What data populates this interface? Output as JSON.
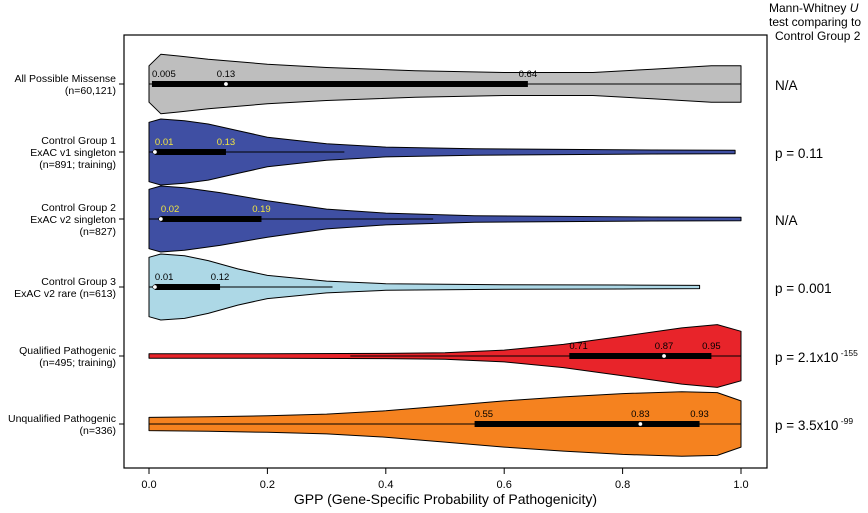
{
  "chart_data": {
    "type": "violin",
    "xlabel": "GPP (Gene-Specific Probability of Pathogenicity)",
    "xlim": [
      0,
      1
    ],
    "x_ticks": [
      "0.0",
      "0.2",
      "0.4",
      "0.6",
      "0.8",
      "1.0"
    ],
    "test_note": {
      "line1_prefix": "Mann-Whitney ",
      "line1_italic": "U",
      "line2": "test comparing to",
      "line3": "Control Group 2"
    },
    "groups": [
      {
        "label_lines": [
          "All Possible Missense",
          "(n=60,121)"
        ],
        "fill": "#bebebe",
        "label_color": "#000000",
        "min": 0.0,
        "max": 1.0,
        "q1": 0.005,
        "median": 0.13,
        "q3": 0.64,
        "q1_label": "0.005",
        "median_label": "0.13",
        "q3_label": "0.64",
        "p_text": "N/A",
        "p_exp": "",
        "profile": [
          [
            0,
            0.55
          ],
          [
            0.02,
            0.9
          ],
          [
            0.05,
            0.85
          ],
          [
            0.1,
            0.75
          ],
          [
            0.2,
            0.6
          ],
          [
            0.3,
            0.5
          ],
          [
            0.45,
            0.4
          ],
          [
            0.6,
            0.35
          ],
          [
            0.75,
            0.35
          ],
          [
            0.85,
            0.45
          ],
          [
            0.95,
            0.55
          ],
          [
            1.0,
            0.55
          ]
        ]
      },
      {
        "label_lines": [
          "Control Group 1",
          "ExAC v1 singleton",
          "(n=891; training)"
        ],
        "fill": "#3f4fa3",
        "label_color": "#f0e442",
        "min": 0.0,
        "max": 0.99,
        "q1": 0.01,
        "median": 0.01,
        "q3": 0.13,
        "whisker": 0.33,
        "q1_label": "0.01",
        "median_label": "0.01",
        "q3_label": "0.13",
        "p_text": "p = 0.11",
        "p_exp": "",
        "profile": [
          [
            0,
            0.9
          ],
          [
            0.02,
            1.0
          ],
          [
            0.06,
            0.95
          ],
          [
            0.1,
            0.85
          ],
          [
            0.15,
            0.65
          ],
          [
            0.2,
            0.45
          ],
          [
            0.3,
            0.25
          ],
          [
            0.4,
            0.15
          ],
          [
            0.55,
            0.1
          ],
          [
            0.7,
            0.08
          ],
          [
            0.85,
            0.06
          ],
          [
            0.99,
            0.05
          ]
        ]
      },
      {
        "label_lines": [
          "Control Group 2",
          "ExAC v2 singleton",
          "(n=827)"
        ],
        "fill": "#3f4fa3",
        "label_color": "#f0e442",
        "min": 0.0,
        "max": 1.0,
        "q1": 0.02,
        "median": 0.02,
        "q3": 0.19,
        "whisker": 0.48,
        "q1_label": "0.02",
        "median_label": "0.02",
        "q3_label": "0.19",
        "p_text": "N/A",
        "p_exp": "",
        "profile": [
          [
            0,
            0.9
          ],
          [
            0.02,
            1.0
          ],
          [
            0.06,
            0.95
          ],
          [
            0.12,
            0.8
          ],
          [
            0.2,
            0.55
          ],
          [
            0.3,
            0.3
          ],
          [
            0.4,
            0.18
          ],
          [
            0.55,
            0.1
          ],
          [
            0.7,
            0.08
          ],
          [
            0.85,
            0.06
          ],
          [
            1.0,
            0.05
          ]
        ]
      },
      {
        "label_lines": [
          "Control Group 3",
          "ExAC v2 rare (n=613)"
        ],
        "fill": "#add8e6",
        "label_color": "#000000",
        "min": 0.0,
        "max": 0.93,
        "q1": 0.01,
        "median": 0.01,
        "q3": 0.12,
        "whisker": 0.31,
        "q1_label": "0.01",
        "median_label": "0.01",
        "q3_label": "0.12",
        "p_text": "p = 0.001",
        "p_exp": "",
        "profile": [
          [
            0,
            0.9
          ],
          [
            0.02,
            1.0
          ],
          [
            0.06,
            0.95
          ],
          [
            0.1,
            0.8
          ],
          [
            0.15,
            0.55
          ],
          [
            0.2,
            0.35
          ],
          [
            0.3,
            0.18
          ],
          [
            0.4,
            0.1
          ],
          [
            0.6,
            0.07
          ],
          [
            0.8,
            0.06
          ],
          [
            0.93,
            0.05
          ]
        ]
      },
      {
        "label_lines": [
          "Qualified Pathogenic",
          "(n=495; training)"
        ],
        "fill": "#e8242a",
        "label_color": "#000000",
        "min": 0.0,
        "max": 1.0,
        "q1": 0.71,
        "median": 0.87,
        "q3": 0.95,
        "whisker_lo": 0.34,
        "q1_label": "0.71",
        "median_label": "0.87",
        "q3_label": "0.95",
        "p_text": "p = 2.1x10",
        "p_exp": "-155",
        "profile": [
          [
            0,
            0.07
          ],
          [
            0.2,
            0.07
          ],
          [
            0.4,
            0.08
          ],
          [
            0.5,
            0.1
          ],
          [
            0.6,
            0.18
          ],
          [
            0.7,
            0.35
          ],
          [
            0.8,
            0.6
          ],
          [
            0.9,
            0.85
          ],
          [
            0.96,
            0.95
          ],
          [
            1.0,
            0.75
          ]
        ]
      },
      {
        "label_lines": [
          "Unqualified Pathogenic",
          "(n=336)"
        ],
        "fill": "#f5821f",
        "label_color": "#000000",
        "min": 0.0,
        "max": 1.0,
        "q1": 0.55,
        "median": 0.83,
        "q3": 0.93,
        "q1_label": "0.55",
        "median_label": "0.83",
        "q3_label": "0.93",
        "p_text": "p = 3.5x10",
        "p_exp": "-99",
        "profile": [
          [
            0,
            0.2
          ],
          [
            0.1,
            0.22
          ],
          [
            0.2,
            0.25
          ],
          [
            0.3,
            0.3
          ],
          [
            0.4,
            0.4
          ],
          [
            0.5,
            0.55
          ],
          [
            0.6,
            0.7
          ],
          [
            0.7,
            0.82
          ],
          [
            0.8,
            0.92
          ],
          [
            0.9,
            0.98
          ],
          [
            0.96,
            0.95
          ],
          [
            1.0,
            0.7
          ]
        ]
      }
    ]
  }
}
